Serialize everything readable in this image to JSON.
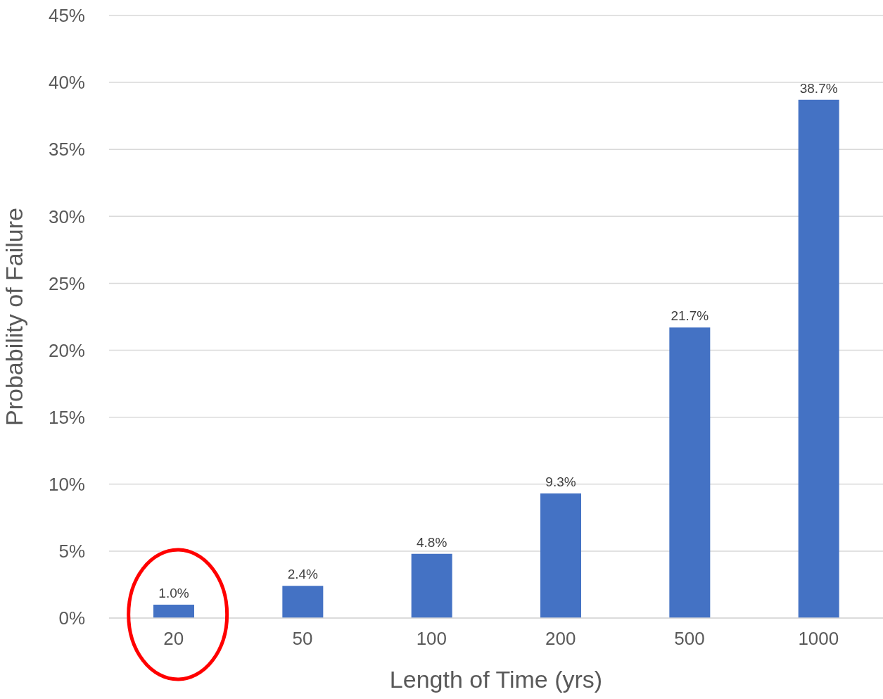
{
  "chart_data": {
    "type": "bar",
    "xlabel": "Length of Time (yrs)",
    "ylabel": "Probability of Failure",
    "categories": [
      "20",
      "50",
      "100",
      "200",
      "500",
      "1000"
    ],
    "values": [
      1.0,
      2.4,
      4.8,
      9.3,
      21.7,
      38.7
    ],
    "value_labels": [
      "1.0%",
      "2.4%",
      "4.8%",
      "9.3%",
      "21.7%",
      "38.7%"
    ],
    "color": "#4472c4",
    "ylim": [
      0,
      45
    ],
    "yticks": [
      {
        "value": 0,
        "label": "0%"
      },
      {
        "value": 5,
        "label": "5%"
      },
      {
        "value": 10,
        "label": "10%"
      },
      {
        "value": 15,
        "label": "15%"
      },
      {
        "value": 20,
        "label": "20%"
      },
      {
        "value": 25,
        "label": "25%"
      },
      {
        "value": 30,
        "label": "30%"
      },
      {
        "value": 35,
        "label": "35%"
      },
      {
        "value": 40,
        "label": "40%"
      },
      {
        "value": 45,
        "label": "45%"
      }
    ],
    "grid": "y",
    "legend": false
  }
}
